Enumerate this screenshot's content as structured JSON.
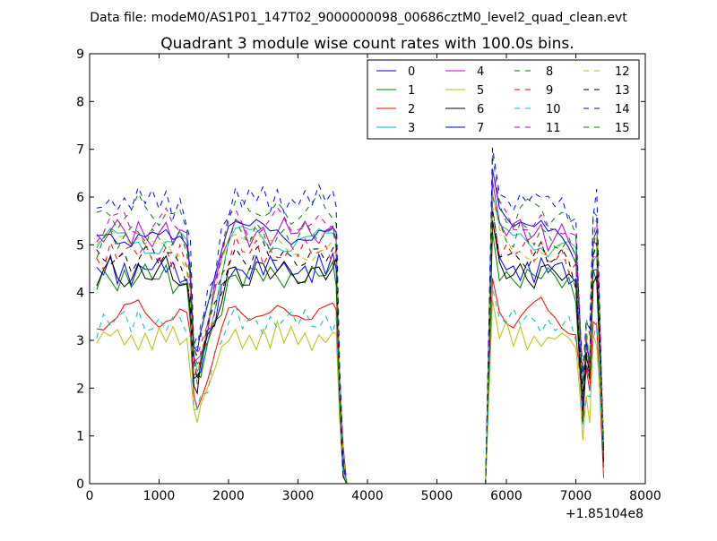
{
  "chart_data": {
    "type": "line",
    "suptitle": "Data file: modeM0/AS1P01_147T02_9000000098_00686cztM0_level2_quad_clean.evt",
    "title": "Quadrant 3 module wise count rates with 100.0s bins.",
    "xlabel": "",
    "ylabel": "",
    "x_offset_label": "+1.85104e8",
    "xlim": [
      0,
      8000
    ],
    "ylim": [
      0,
      9
    ],
    "x_ticks": [
      0,
      1000,
      2000,
      3000,
      4000,
      5000,
      6000,
      7000,
      8000
    ],
    "y_ticks": [
      0,
      1,
      2,
      3,
      4,
      5,
      6,
      7,
      8,
      9
    ],
    "grid": false,
    "legend_position": "top-right",
    "legend_columns": 4,
    "key_x": [
      100,
      200,
      300,
      400,
      500,
      600,
      700,
      800,
      900,
      1000,
      1100,
      1200,
      1300,
      1400,
      1450,
      1500,
      1550,
      1600,
      1700,
      1800,
      1900,
      2000,
      2100,
      2200,
      2300,
      2400,
      2500,
      2600,
      2700,
      2800,
      2900,
      3000,
      3100,
      3200,
      3300,
      3400,
      3500,
      3550,
      3600,
      3650,
      3700,
      3800,
      4000,
      5000,
      5700,
      5800,
      5900,
      6000,
      6100,
      6200,
      6300,
      6400,
      6500,
      6600,
      6700,
      6800,
      6900,
      7000,
      7050,
      7100,
      7150,
      7200,
      7250,
      7300,
      7400
    ],
    "key_level": [
      0.82,
      0.84,
      0.86,
      0.84,
      0.85,
      0.83,
      0.86,
      0.84,
      0.85,
      0.84,
      0.86,
      0.83,
      0.84,
      0.8,
      0.7,
      0.43,
      0.4,
      0.46,
      0.55,
      0.65,
      0.75,
      0.84,
      0.86,
      0.85,
      0.84,
      0.86,
      0.85,
      0.84,
      0.86,
      0.85,
      0.84,
      0.86,
      0.85,
      0.84,
      0.86,
      0.85,
      0.86,
      0.85,
      0.35,
      0.08,
      0.0,
      0.0,
      0.0,
      0.0,
      0.0,
      1.0,
      0.88,
      0.86,
      0.84,
      0.86,
      0.85,
      0.84,
      0.86,
      0.83,
      0.85,
      0.84,
      0.82,
      0.78,
      0.55,
      0.3,
      0.5,
      0.42,
      0.82,
      0.85,
      0.1
    ],
    "series": [
      {
        "name": "0",
        "color": "#0000ff",
        "dash": false,
        "base": 5.3
      },
      {
        "name": "1",
        "color": "#008000",
        "dash": false,
        "base": 5.1
      },
      {
        "name": "2",
        "color": "#ff0000",
        "dash": false,
        "base": 4.2
      },
      {
        "name": "3",
        "color": "#00bfbf",
        "dash": false,
        "base": 6.0
      },
      {
        "name": "4",
        "color": "#bf00bf",
        "dash": false,
        "base": 6.2
      },
      {
        "name": "5",
        "color": "#bfbf00",
        "dash": false,
        "base": 3.6
      },
      {
        "name": "6",
        "color": "#000000",
        "dash": false,
        "base": 5.2
      },
      {
        "name": "7",
        "color": "#0000ff",
        "dash": false,
        "base": 6.3
      },
      {
        "name": "8",
        "color": "#008000",
        "dash": true,
        "base": 6.7
      },
      {
        "name": "9",
        "color": "#ff0000",
        "dash": true,
        "base": 5.7
      },
      {
        "name": "10",
        "color": "#00bfbf",
        "dash": true,
        "base": 4.0
      },
      {
        "name": "11",
        "color": "#bf00bf",
        "dash": true,
        "base": 6.4
      },
      {
        "name": "12",
        "color": "#bfbf00",
        "dash": true,
        "base": 5.9
      },
      {
        "name": "13",
        "color": "#000000",
        "dash": true,
        "base": 5.6
      },
      {
        "name": "14",
        "color": "#0000ff",
        "dash": true,
        "base": 7.0
      },
      {
        "name": "15",
        "color": "#008000",
        "dash": true,
        "base": 6.1
      }
    ]
  }
}
